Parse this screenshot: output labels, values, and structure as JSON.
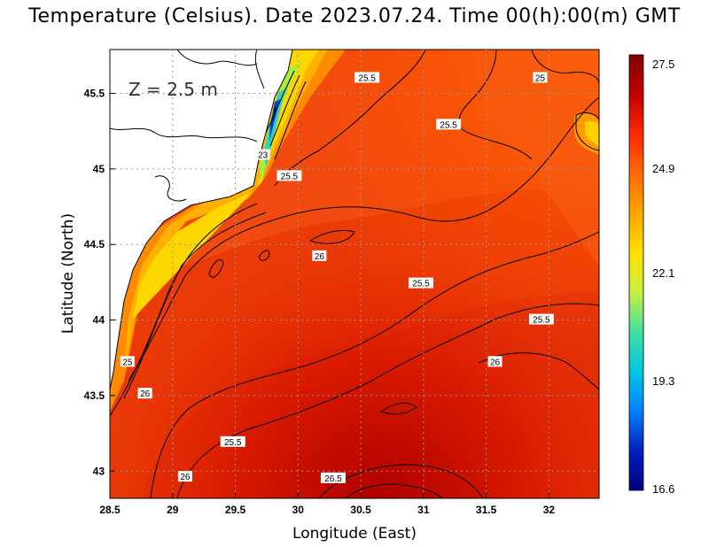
{
  "title": "Temperature (Celsius). Date 2023.07.24. Time 00(h):00(m) GMT",
  "depth_label": "Z = 2.5 m",
  "axes": {
    "xlabel": "Longitude (East)",
    "ylabel": "Latitude (North)",
    "xticks": [
      "28.5",
      "29",
      "29.5",
      "30",
      "30.5",
      "31",
      "31.5",
      "32"
    ],
    "yticks": [
      "43",
      "43.5",
      "44",
      "44.5",
      "45",
      "45.5"
    ]
  },
  "colorbar": {
    "ticks": [
      "27.5",
      "24.9",
      "22.1",
      "19.3",
      "16.6"
    ],
    "colors": [
      "#800000",
      "#c00000",
      "#ff2a00",
      "#ff6a00",
      "#ffa500",
      "#ffe000",
      "#c8f040",
      "#40e0a0",
      "#00c8e0",
      "#0080ff",
      "#0020c0",
      "#000080"
    ]
  },
  "contour_labels": [
    {
      "text": "25.5",
      "lon": 30.55,
      "lat": 45.6
    },
    {
      "text": "25",
      "lon": 31.93,
      "lat": 45.6
    },
    {
      "text": "25.5",
      "lon": 31.2,
      "lat": 45.29
    },
    {
      "text": "23",
      "lon": 29.72,
      "lat": 45.09
    },
    {
      "text": "25.5",
      "lon": 29.93,
      "lat": 44.95
    },
    {
      "text": "26",
      "lon": 30.17,
      "lat": 44.42
    },
    {
      "text": "25.5",
      "lon": 30.98,
      "lat": 44.24
    },
    {
      "text": "25.5",
      "lon": 31.94,
      "lat": 44.0
    },
    {
      "text": "26",
      "lon": 31.57,
      "lat": 43.72
    },
    {
      "text": "25",
      "lon": 28.64,
      "lat": 43.72
    },
    {
      "text": "26",
      "lon": 28.78,
      "lat": 43.51
    },
    {
      "text": "25.5",
      "lon": 29.48,
      "lat": 43.19
    },
    {
      "text": "26",
      "lon": 29.1,
      "lat": 42.96
    },
    {
      "text": "26.5",
      "lon": 30.28,
      "lat": 42.95
    }
  ]
}
